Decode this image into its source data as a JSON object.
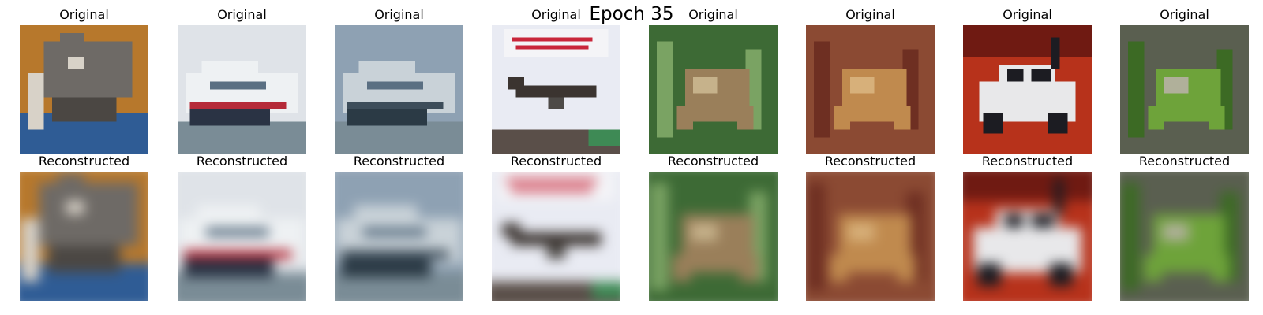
{
  "figure": {
    "title": "Epoch 35",
    "original_label": "Original",
    "reconstructed_label": "Reconstructed"
  },
  "samples": [
    {
      "subject": "cat",
      "colors": {
        "bg": "#b7782c",
        "main": "#6e6a66",
        "accent": "#2f5c95",
        "light": "#d8d2c8"
      }
    },
    {
      "subject": "ship",
      "colors": {
        "bg": "#dfe3e8",
        "main": "#eef1f3",
        "accent": "#b52a38",
        "light": "#2a3344"
      }
    },
    {
      "subject": "ship",
      "colors": {
        "bg": "#8ea1b3",
        "main": "#c9d2d8",
        "accent": "#3d4d5a",
        "light": "#2b3a45"
      }
    },
    {
      "subject": "airplane",
      "colors": {
        "bg": "#e9ebf3",
        "main": "#3b3430",
        "accent": "#c9263a",
        "light": "#4d4a47"
      }
    },
    {
      "subject": "frog",
      "colors": {
        "bg": "#3d6a35",
        "main": "#9a7f5a",
        "accent": "#7aa363",
        "light": "#c6b28b"
      }
    },
    {
      "subject": "frog",
      "colors": {
        "bg": "#8b4a33",
        "main": "#c08a4e",
        "accent": "#6e2f22",
        "light": "#d7b07a"
      }
    },
    {
      "subject": "automobile",
      "colors": {
        "bg": "#b7321b",
        "main": "#e8e8ea",
        "accent": "#1c1c22",
        "light": "#6f1a12"
      }
    },
    {
      "subject": "frog",
      "colors": {
        "bg": "#5a5f50",
        "main": "#6ea33a",
        "accent": "#3c6a24",
        "light": "#b0b09a"
      }
    }
  ]
}
